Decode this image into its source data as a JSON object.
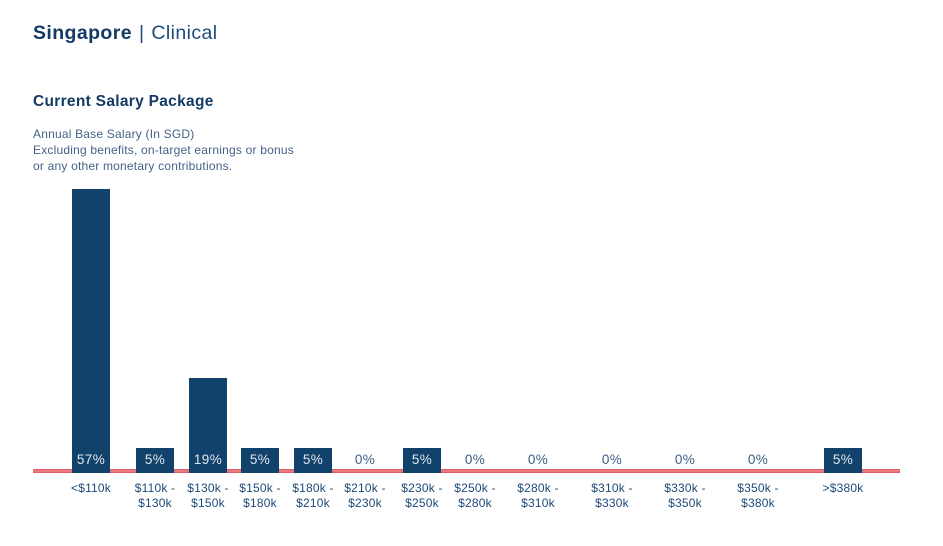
{
  "header": {
    "region": "Singapore",
    "separator": "|",
    "category": "Clinical"
  },
  "section": {
    "title": "Current Salary Package",
    "subtitle": "Annual Base Salary (In SGD)\nExcluding benefits, on-target earnings or bonus\nor any other monetary contributions."
  },
  "chart_data": {
    "type": "bar",
    "title": "Current Salary Package",
    "subtitle": "Annual Base Salary (In SGD) Excluding benefits, on-target earnings or bonus or any other monetary contributions.",
    "unit": "%",
    "categories": [
      "<$110k",
      "$110k - $130k",
      "$130k - $150k",
      "$150k - $180k",
      "$180k - $210k",
      "$210k - $230k",
      "$230k - $250k",
      "$250k - $280k",
      "$280k - $310k",
      "$310k - $330k",
      "$330k - $350k",
      "$350k - $380k",
      ">$380k"
    ],
    "values": [
      57,
      5,
      19,
      5,
      5,
      0,
      5,
      0,
      0,
      0,
      0,
      0,
      5
    ],
    "value_labels": [
      "57%",
      "5%",
      "19%",
      "5%",
      "5%",
      "0%",
      "5%",
      "0%",
      "0%",
      "0%",
      "0%",
      "0%",
      "5%"
    ],
    "xlabel": "",
    "ylabel": "",
    "ylim": [
      0,
      57
    ],
    "grid": false,
    "legend": false,
    "bar_color": "#10426b",
    "baseline_color": "#e25860",
    "value_label_color_on_bar": "#e3e7ee",
    "value_label_color_zero": "#3a5d84",
    "tick_label_color": "#1d4a78"
  },
  "colors": {
    "title_navy": "#123a64",
    "subtitle_blue": "#44618a"
  }
}
